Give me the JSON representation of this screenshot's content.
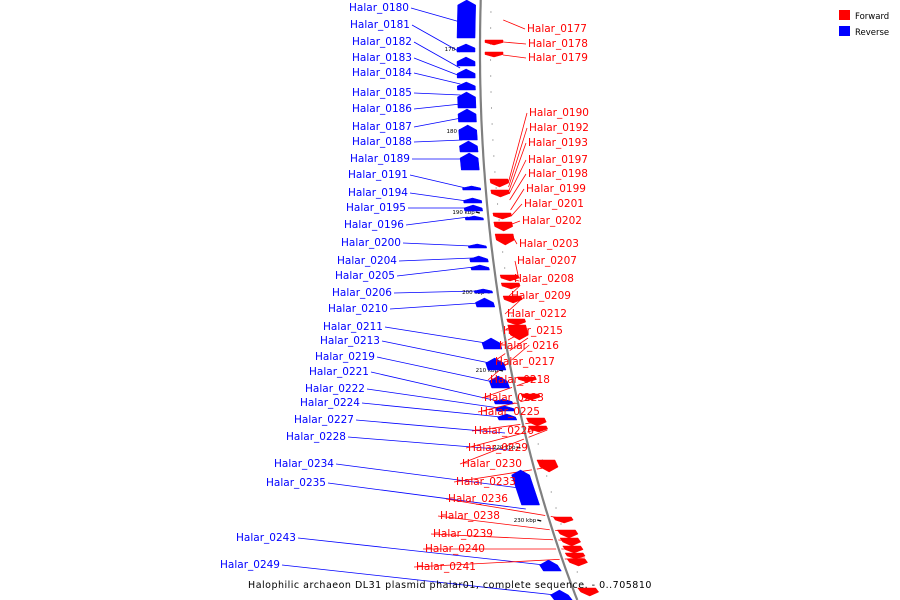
{
  "caption": "Halophilic archaeon DL31 plasmid phalar01, complete sequence. - 0..705810",
  "legend": [
    {
      "label": "Forward",
      "color": "#ff0000"
    },
    {
      "label": "Reverse",
      "color": "#0000ff"
    }
  ],
  "colors": {
    "forward": "#ff0000",
    "reverse": "#0000ff",
    "backbone": "#808080"
  },
  "ticks": [
    "170 kbp",
    "180 kbp",
    "190 kbp",
    "200 kbp",
    "210 kbp",
    "220 kbp",
    "230 kbp"
  ],
  "forward_labels": [
    "Halar_0177",
    "Halar_0178",
    "Halar_0179",
    "Halar_0190",
    "Halar_0192",
    "Halar_0193",
    "Halar_0197",
    "Halar_0198",
    "Halar_0199",
    "Halar_0201",
    "Halar_0202",
    "Halar_0203",
    "Halar_0207",
    "Halar_0208",
    "Halar_0209",
    "Halar_0212",
    "Halar_0215",
    "Halar_0216",
    "Halar_0217",
    "Halar_0218",
    "Halar_0223",
    "Halar_0225",
    "Halar_0226",
    "Halar_0229",
    "Halar_0230",
    "Halar_0233",
    "Halar_0236",
    "Halar_0238",
    "Halar_0239",
    "Halar_0240",
    "Halar_0241"
  ],
  "reverse_labels": [
    "Halar_0180",
    "Halar_0181",
    "Halar_0182",
    "Halar_0183",
    "Halar_0184",
    "Halar_0185",
    "Halar_0186",
    "Halar_0187",
    "Halar_0188",
    "Halar_0189",
    "Halar_0191",
    "Halar_0194",
    "Halar_0195",
    "Halar_0196",
    "Halar_0200",
    "Halar_0204",
    "Halar_0205",
    "Halar_0206",
    "Halar_0210",
    "Halar_0211",
    "Halar_0213",
    "Halar_0219",
    "Halar_0221",
    "Halar_0222",
    "Halar_0224",
    "Halar_0227",
    "Halar_0228",
    "Halar_0234",
    "Halar_0235",
    "Halar_0243",
    "Halar_0249"
  ]
}
